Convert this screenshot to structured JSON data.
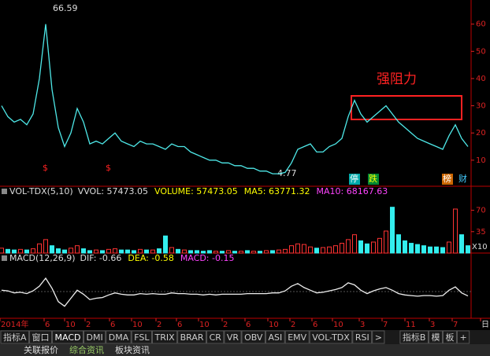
{
  "main": {
    "type": "line",
    "color": "#4ee8e8",
    "values": [
      30,
      26,
      24,
      25,
      23,
      27,
      40,
      60,
      36,
      22,
      15,
      20,
      29,
      24,
      16,
      17,
      16,
      18,
      20,
      17,
      16,
      15,
      17,
      16,
      16,
      15,
      14,
      16,
      15,
      15,
      13,
      12,
      11,
      10,
      10,
      9,
      9,
      8,
      8,
      7,
      7,
      6,
      6,
      5,
      5,
      5.5,
      9,
      14,
      15,
      16,
      13,
      13,
      15,
      16,
      18,
      26,
      32,
      27,
      24,
      26,
      28,
      30,
      27,
      24,
      22,
      20,
      18,
      17,
      16,
      15,
      14,
      19,
      23,
      18,
      15
    ],
    "ylim": [
      1,
      68
    ],
    "yticks": [
      10,
      20,
      30,
      40,
      50,
      60
    ],
    "high_label": "66.59",
    "low_label": "4.77",
    "resistance": "强阻力",
    "signals": [
      "$",
      "$"
    ],
    "badges": [
      "停",
      "跌",
      "榜",
      "财"
    ]
  },
  "volume": {
    "type": "bar",
    "name": "VOL-TDX(5,10)",
    "items": [
      "VVOL: 57473.05",
      "VOLUME: 57473.05",
      "MA5: 63771.32",
      "MA10: 68167.63"
    ],
    "values": [
      8,
      6,
      5,
      6,
      5,
      7,
      15,
      22,
      12,
      7,
      5,
      8,
      12,
      7,
      4,
      5,
      4,
      6,
      7,
      5,
      5,
      4,
      6,
      5,
      5,
      7,
      28,
      9,
      6,
      5,
      4,
      4,
      3,
      4,
      3,
      3,
      4,
      3,
      3,
      4,
      3,
      3,
      4,
      4,
      5,
      6,
      12,
      15,
      14,
      10,
      8,
      9,
      10,
      12,
      16,
      22,
      30,
      20,
      15,
      18,
      24,
      36,
      75,
      30,
      20,
      16,
      14,
      12,
      10,
      10,
      9,
      18,
      72,
      30,
      12
    ],
    "ylim": [
      0,
      90
    ],
    "yticks": [
      35,
      70
    ],
    "unit": "X10"
  },
  "macd": {
    "type": "line",
    "name": "MACD(12,26,9)",
    "items": [
      "DIF: -0.66",
      "DEA: -0.58",
      "MACD: -0.15"
    ],
    "values": [
      0.2,
      0.1,
      -0.2,
      -0.1,
      -0.3,
      0.1,
      0.8,
      2.0,
      0.5,
      -1.5,
      -2.2,
      -1.0,
      0.2,
      -0.4,
      -1.2,
      -1.0,
      -0.9,
      -0.5,
      -0.2,
      -0.4,
      -0.5,
      -0.5,
      -0.3,
      -0.4,
      -0.3,
      -0.4,
      -0.4,
      -0.2,
      -0.3,
      -0.3,
      -0.4,
      -0.4,
      -0.5,
      -0.4,
      -0.5,
      -0.4,
      -0.4,
      -0.4,
      -0.4,
      -0.3,
      -0.3,
      -0.3,
      -0.3,
      -0.2,
      -0.2,
      0.1,
      0.8,
      1.2,
      0.6,
      0.2,
      -0.2,
      -0.1,
      0.1,
      0.3,
      0.6,
      1.3,
      1.0,
      0.2,
      -0.3,
      0.1,
      0.4,
      0.6,
      0.2,
      -0.3,
      -0.5,
      -0.6,
      -0.7,
      -0.6,
      -0.6,
      -0.7,
      -0.6,
      0.2,
      0.7,
      -0.2,
      -0.66
    ],
    "ylim": [
      -4,
      4
    ]
  },
  "date_axis": [
    "2014年",
    "6",
    "10",
    "2",
    "6",
    "10",
    "2",
    "6",
    "10",
    "2",
    "6",
    "10",
    "2",
    "6",
    "10",
    "3",
    "7",
    "11",
    "3",
    "7",
    "日"
  ],
  "tabs": [
    "指标A",
    "窗口",
    "MACD",
    "DMI",
    "DMA",
    "FSL",
    "TRIX",
    "BRAR",
    "CR",
    "VR",
    "OBV",
    "ASI",
    "EMV",
    "VOL-TDX",
    "RSI",
    ">",
    "指标B",
    "模",
    "板",
    "+"
  ],
  "bottom_tabs": [
    "关联报价",
    "综合资讯",
    "板块资讯"
  ]
}
